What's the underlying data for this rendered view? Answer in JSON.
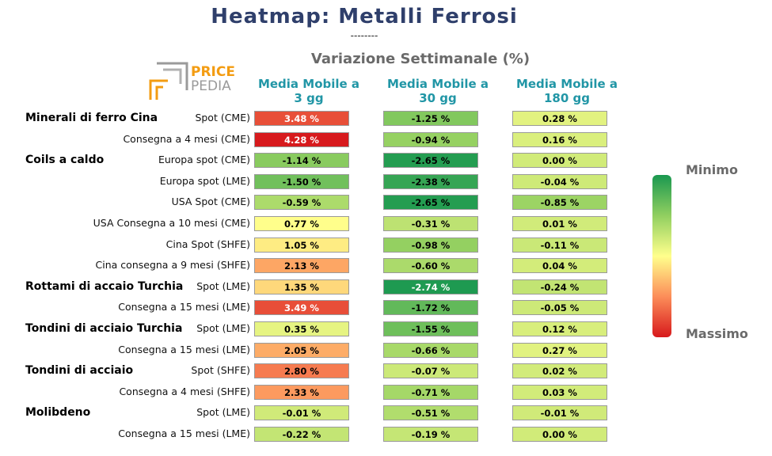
{
  "title": "Heatmap: Metalli Ferrosi",
  "separator": "--------",
  "logo": {
    "line1": "PRICE",
    "line2": "PEDIA"
  },
  "chart_data": {
    "type": "heatmap",
    "title": "Variazione Settimanale (%)",
    "columns": [
      "Media Mobile a\n3 gg",
      "Media Mobile a\n30 gg",
      "Media Mobile a\n180 gg"
    ],
    "rows": [
      {
        "group": "Minerali di ferro Cina",
        "label": "Spot (CME)",
        "values": [
          3.48,
          -1.25,
          0.28
        ]
      },
      {
        "group": "",
        "label": "Consegna a 4 mesi (CME)",
        "values": [
          4.28,
          -0.94,
          0.16
        ]
      },
      {
        "group": "Coils a caldo",
        "label": "Europa spot (CME)",
        "values": [
          -1.14,
          -2.65,
          0.0
        ]
      },
      {
        "group": "",
        "label": "Europa spot (LME)",
        "values": [
          -1.5,
          -2.38,
          -0.04
        ]
      },
      {
        "group": "",
        "label": "USA Spot (CME)",
        "values": [
          -0.59,
          -2.65,
          -0.85
        ]
      },
      {
        "group": "",
        "label": "USA Consegna a 10 mesi (CME)",
        "values": [
          0.77,
          -0.31,
          0.01
        ]
      },
      {
        "group": "",
        "label": "Cina Spot (SHFE)",
        "values": [
          1.05,
          -0.98,
          -0.11
        ]
      },
      {
        "group": "",
        "label": "Cina consegna a 9 mesi (SHFE)",
        "values": [
          2.13,
          -0.6,
          0.04
        ]
      },
      {
        "group": "Rottami di accaio Turchia",
        "label": "Spot (LME)",
        "values": [
          1.35,
          -2.74,
          -0.24
        ]
      },
      {
        "group": "",
        "label": "Consegna a 15 mesi (LME)",
        "values": [
          3.49,
          -1.72,
          -0.05
        ]
      },
      {
        "group": "Tondini di acciaio Turchia",
        "label": "Spot (LME)",
        "values": [
          0.35,
          -1.55,
          0.12
        ]
      },
      {
        "group": "",
        "label": "Consegna a 15 mesi (LME)",
        "values": [
          2.05,
          -0.66,
          0.27
        ]
      },
      {
        "group": "Tondini di acciaio",
        "label": "Spot (SHFE)",
        "values": [
          2.8,
          -0.07,
          0.02
        ]
      },
      {
        "group": "",
        "label": "Consegna a 4 mesi (SHFE)",
        "values": [
          2.33,
          -0.71,
          0.03
        ]
      },
      {
        "group": "Molibdeno",
        "label": "Spot (LME)",
        "values": [
          -0.01,
          -0.51,
          -0.01
        ]
      },
      {
        "group": "",
        "label": "Consegna a 15 mesi (LME)",
        "values": [
          -0.22,
          -0.19,
          0.0
        ]
      }
    ],
    "color_scale": {
      "stops": [
        "#1a9850",
        "#91cf60",
        "#ffff8c",
        "#fc8d59",
        "#d7191c"
      ],
      "domain": [
        -2.8,
        4.3
      ]
    },
    "legend": {
      "min_label": "Minimo",
      "max_label": "Massimo"
    }
  }
}
